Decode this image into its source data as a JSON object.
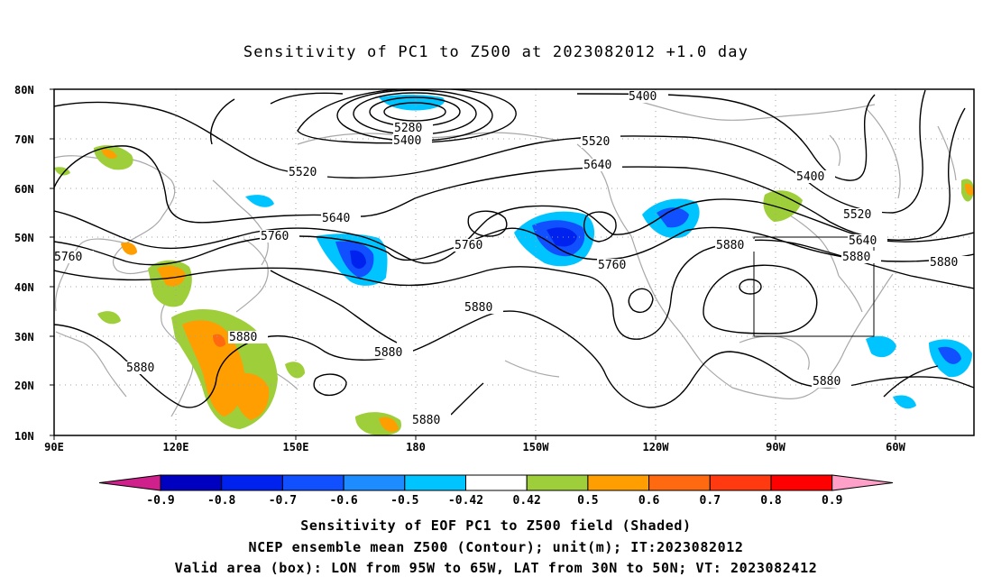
{
  "title": "Sensitivity of PC1 to Z500 at 2023082012 +1.0 day",
  "y_ticks": [
    "80N",
    "70N",
    "60N",
    "50N",
    "40N",
    "30N",
    "20N",
    "10N"
  ],
  "x_ticks": [
    "90E",
    "120E",
    "150E",
    "180",
    "150W",
    "120W",
    "90W",
    "60W"
  ],
  "contour_labels": {
    "c5400a": "5400",
    "c5280": "5280",
    "c5400b": "5400",
    "c5520a": "5520",
    "c5520b": "5520",
    "c5640a": "5640",
    "c5640b": "5640",
    "c5400c": "5400",
    "c5520c": "5520",
    "c5640c": "5640",
    "c5760a": "5760",
    "c5760b": "5760",
    "c5760c": "5760",
    "c5760d": "5760",
    "c5880a": "5880",
    "c5880b": "5880",
    "c5880c": "5880",
    "c5880d": "5880",
    "c5880e": "5880",
    "c5880f": "5880",
    "c5880g": "5880",
    "c5880h": "5880"
  },
  "colorbar": {
    "labels": [
      "-0.9",
      "-0.8",
      "-0.7",
      "-0.6",
      "-0.5",
      "-0.42",
      "0.42",
      "0.5",
      "0.6",
      "0.7",
      "0.8",
      "0.9"
    ],
    "colors": [
      "#0000c0",
      "#0022ee",
      "#1050ff",
      "#1d8cff",
      "#00c4ff",
      "#ffffff",
      "#9ecf3a",
      "#ff9e00",
      "#ff6a10",
      "#ff3a10",
      "#ff0000"
    ],
    "low_end_color": "#d0208c",
    "high_end_color": "#ffa0c8"
  },
  "captions": {
    "line1": "Sensitivity of EOF PC1 to Z500 field (Shaded)",
    "line2": "NCEP ensemble mean Z500 (Contour); unit(m); IT:2023082012",
    "line3": "Valid area (box): LON from 95W to 65W, LAT from 30N to 50N; VT: 2023082412"
  },
  "valid_box": {
    "lon_min": "95W",
    "lon_max": "65W",
    "lat_min": "30N",
    "lat_max": "50N"
  }
}
